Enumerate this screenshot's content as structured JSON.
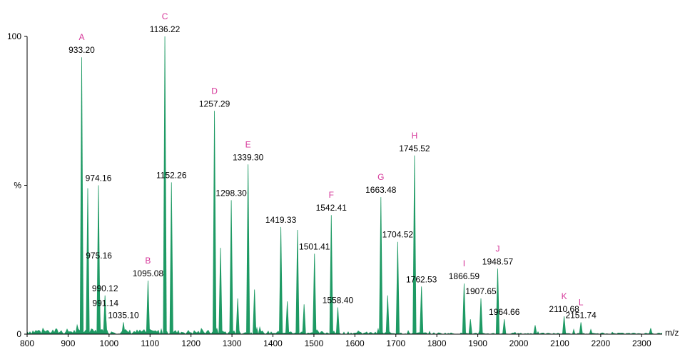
{
  "chart_data": {
    "type": "line",
    "title": "",
    "xlabel": "m/z",
    "ylabel": "%",
    "xlim": [
      800,
      2350
    ],
    "ylim": [
      0,
      100
    ],
    "x_ticks": [
      800,
      900,
      1000,
      1100,
      1200,
      1300,
      1400,
      1500,
      1600,
      1700,
      1800,
      1900,
      2000,
      2100,
      2200,
      2300
    ],
    "y_tick_labels": [
      {
        "value": 0,
        "label": "0"
      },
      {
        "value": 50,
        "label": "%"
      },
      {
        "value": 100,
        "label": "100"
      }
    ],
    "color": "#1e9a64",
    "annotation_color": "#d6389a",
    "peaks": [
      {
        "mz": 933.2,
        "intensity": 93,
        "label": "933.20",
        "letter": "A"
      },
      {
        "mz": 948.0,
        "intensity": 49,
        "label": "",
        "letter": ""
      },
      {
        "mz": 974.16,
        "intensity": 50,
        "label": "974.16",
        "letter": ""
      },
      {
        "mz": 975.16,
        "intensity": 24,
        "label": "975.16",
        "letter": ""
      },
      {
        "mz": 990.12,
        "intensity": 13,
        "label": "990.12",
        "letter": ""
      },
      {
        "mz": 991.14,
        "intensity": 8,
        "label": "991.14",
        "letter": ""
      },
      {
        "mz": 1035.1,
        "intensity": 4,
        "label": "1035.10",
        "letter": ""
      },
      {
        "mz": 1095.08,
        "intensity": 18,
        "label": "1095.08",
        "letter": "B"
      },
      {
        "mz": 1136.22,
        "intensity": 100,
        "label": "1136.22",
        "letter": "C"
      },
      {
        "mz": 1152.26,
        "intensity": 51,
        "label": "1152.26",
        "letter": ""
      },
      {
        "mz": 1257.29,
        "intensity": 75,
        "label": "1257.29",
        "letter": "D"
      },
      {
        "mz": 1272.0,
        "intensity": 29,
        "label": "",
        "letter": ""
      },
      {
        "mz": 1298.3,
        "intensity": 45,
        "label": "1298.30",
        "letter": ""
      },
      {
        "mz": 1314.0,
        "intensity": 12,
        "label": "",
        "letter": ""
      },
      {
        "mz": 1339.3,
        "intensity": 57,
        "label": "1339.30",
        "letter": "E"
      },
      {
        "mz": 1355.0,
        "intensity": 15,
        "label": "",
        "letter": ""
      },
      {
        "mz": 1419.33,
        "intensity": 36,
        "label": "1419.33",
        "letter": ""
      },
      {
        "mz": 1435.0,
        "intensity": 11,
        "label": "",
        "letter": ""
      },
      {
        "mz": 1460.0,
        "intensity": 35,
        "label": "",
        "letter": ""
      },
      {
        "mz": 1476.0,
        "intensity": 10,
        "label": "",
        "letter": ""
      },
      {
        "mz": 1501.41,
        "intensity": 27,
        "label": "1501.41",
        "letter": ""
      },
      {
        "mz": 1542.41,
        "intensity": 40,
        "label": "1542.41",
        "letter": "F"
      },
      {
        "mz": 1558.4,
        "intensity": 9,
        "label": "1558.40",
        "letter": ""
      },
      {
        "mz": 1663.48,
        "intensity": 46,
        "label": "1663.48",
        "letter": "G"
      },
      {
        "mz": 1680.0,
        "intensity": 13,
        "label": "",
        "letter": ""
      },
      {
        "mz": 1704.52,
        "intensity": 31,
        "label": "1704.52",
        "letter": ""
      },
      {
        "mz": 1745.52,
        "intensity": 60,
        "label": "1745.52",
        "letter": "H"
      },
      {
        "mz": 1762.53,
        "intensity": 16,
        "label": "1762.53",
        "letter": ""
      },
      {
        "mz": 1866.59,
        "intensity": 17,
        "label": "1866.59",
        "letter": "I"
      },
      {
        "mz": 1882.0,
        "intensity": 5,
        "label": "",
        "letter": ""
      },
      {
        "mz": 1907.65,
        "intensity": 12,
        "label": "1907.65",
        "letter": ""
      },
      {
        "mz": 1948.57,
        "intensity": 22,
        "label": "1948.57",
        "letter": "J"
      },
      {
        "mz": 1964.66,
        "intensity": 5,
        "label": "1964.66",
        "letter": ""
      },
      {
        "mz": 2040.0,
        "intensity": 3,
        "label": "",
        "letter": ""
      },
      {
        "mz": 2110.68,
        "intensity": 6,
        "label": "2110.68",
        "letter": "K"
      },
      {
        "mz": 2151.74,
        "intensity": 4,
        "label": "2151.74",
        "letter": "L"
      },
      {
        "mz": 2322.0,
        "intensity": 2,
        "label": "",
        "letter": ""
      }
    ]
  }
}
